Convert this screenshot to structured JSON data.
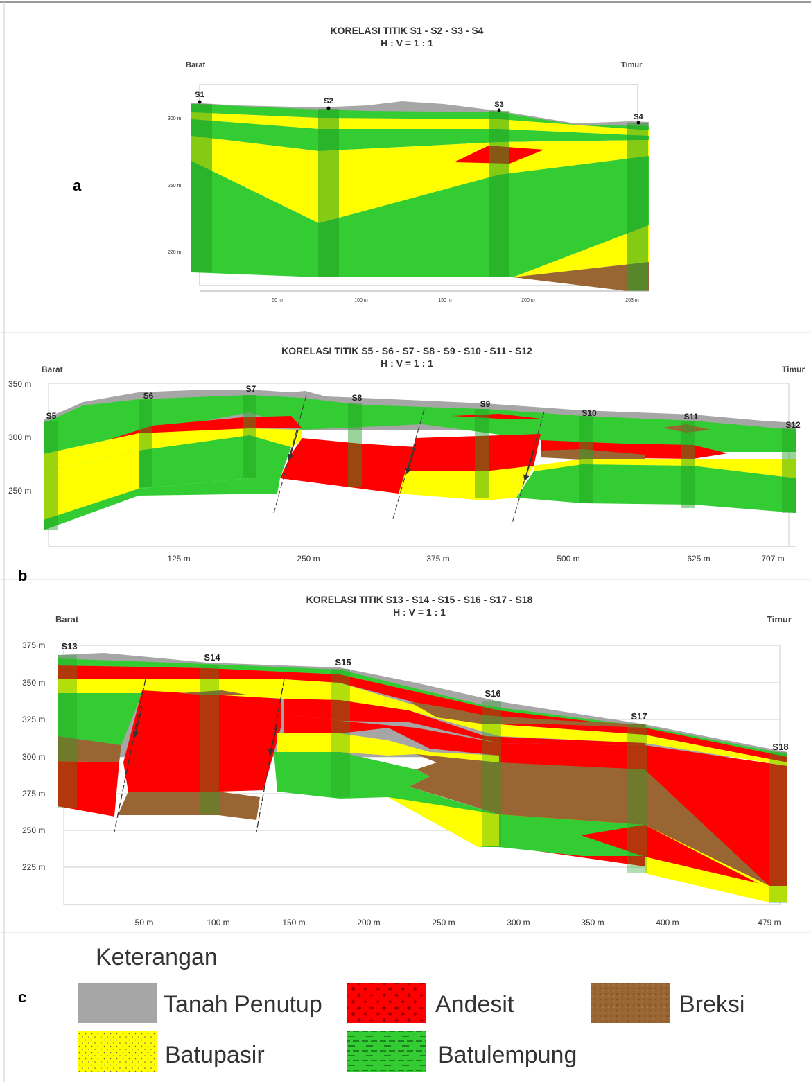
{
  "colors": {
    "tanah_penutup": "#a6a6a6",
    "andesit": "#ff0000",
    "breksi": "#996633",
    "batupasir": "#ffff00",
    "batulempung": "#33cc33",
    "borehole_dark": "#22a022"
  },
  "panels": [
    {
      "label": "a",
      "title": "KORELASI TITIK S1 - S2 - S3 - S4",
      "subtitle": "H : V = 1 : 1",
      "west": "Barat",
      "east": "Timur",
      "boreholes": [
        "S1",
        "S2",
        "S3",
        "S4"
      ],
      "y_ticks": [
        "300 m",
        "260 m",
        "220 m"
      ],
      "x_ticks": [
        "50 m",
        "100 m",
        "150 m",
        "200 m",
        "263 m"
      ]
    },
    {
      "label": "b",
      "title": "KORELASI TITIK S5 - S6 - S7 - S8 - S9 - S10 - S11 - S12",
      "subtitle": "H : V = 1 : 1",
      "west": "Barat",
      "east": "Timur",
      "boreholes": [
        "S5",
        "S6",
        "S7",
        "S8",
        "S9",
        "S10",
        "S11",
        "S12"
      ],
      "y_ticks": [
        "350 m",
        "300 m",
        "250 m"
      ],
      "x_ticks": [
        "125 m",
        "250 m",
        "375 m",
        "500 m",
        "625 m",
        "707 m"
      ]
    },
    {
      "label": "c",
      "title": "KORELASI TITIK S13 - S14 - S15 - S16 - S17 - S18",
      "subtitle": "H : V = 1 : 1",
      "west": "Barat",
      "east": "Timur",
      "boreholes": [
        "S13",
        "S14",
        "S15",
        "S16",
        "S17",
        "S18"
      ],
      "y_ticks": [
        "375 m",
        "350 m",
        "325 m",
        "300 m",
        "275 m",
        "250 m",
        "225 m"
      ],
      "x_ticks": [
        "50 m",
        "100 m",
        "150 m",
        "200 m",
        "250 m",
        "300 m",
        "350 m",
        "400 m",
        "479 m"
      ]
    }
  ],
  "legend": {
    "title": "Keterangan",
    "items": [
      {
        "name": "Tanah Penutup",
        "color": "#a6a6a6"
      },
      {
        "name": "Andesit",
        "color": "#ff0000"
      },
      {
        "name": "Breksi",
        "color": "#996633"
      },
      {
        "name": "Batupasir",
        "color": "#ffff00"
      },
      {
        "name": "Batulempung",
        "color": "#33cc33"
      }
    ]
  }
}
